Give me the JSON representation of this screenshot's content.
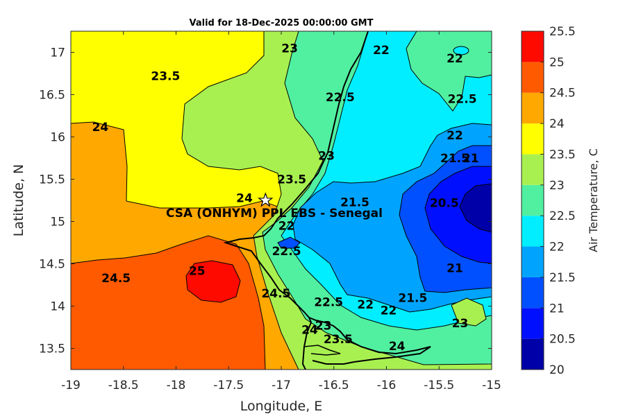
{
  "map": {
    "title": "Valid for 18-Dec-2025 00:00:00 GMT",
    "xlabel": "Longitude, E",
    "ylabel": "Latitude, N",
    "xlim": [
      -19,
      -15
    ],
    "ylim": [
      13.25,
      17.25
    ],
    "x_ticks": [
      "-19",
      "-18.5",
      "-18",
      "-17.5",
      "-17",
      "-16.5",
      "-16",
      "-15.5",
      "-15"
    ],
    "y_ticks": [
      "13.5",
      "14",
      "14.5",
      "15",
      "15.5",
      "16",
      "16.5",
      "17"
    ],
    "site_label": "CSA (ONHYM) PPL EBS  - Senegal",
    "site_lon": -17.15,
    "site_lat": 15.25
  },
  "colorbar": {
    "label": "Air Temperature, C",
    "levels": [
      "20",
      "20.5",
      "21",
      "21.5",
      "22",
      "22.5",
      "23",
      "23.5",
      "24",
      "24.5",
      "25",
      "25.5"
    ],
    "colors": [
      "#0000a8",
      "#0010ff",
      "#0050ff",
      "#00a4ff",
      "#00eeff",
      "#50f0a0",
      "#a8f050",
      "#ffff00",
      "#ffa800",
      "#ff5a00",
      "#ff0a00",
      "#a80000"
    ]
  },
  "chart_data": {
    "type": "contour",
    "title": "Valid for 18-Dec-2025 00:00:00 GMT",
    "xlabel": "Longitude, E",
    "ylabel": "Latitude, N",
    "xlim": [
      -19,
      -15
    ],
    "ylim": [
      13.25,
      17.25
    ],
    "clim": [
      20,
      25.5
    ],
    "contour_labels": [
      {
        "text": "23.5",
        "lon": -18.1,
        "lat": 16.72
      },
      {
        "text": "23",
        "lon": -16.92,
        "lat": 17.05
      },
      {
        "text": "22.5",
        "lon": -16.44,
        "lat": 16.47
      },
      {
        "text": "22",
        "lon": -16.05,
        "lat": 17.03
      },
      {
        "text": "22",
        "lon": -15.35,
        "lat": 16.93
      },
      {
        "text": "22.5",
        "lon": -15.28,
        "lat": 16.45
      },
      {
        "text": "24",
        "lon": -18.72,
        "lat": 16.12
      },
      {
        "text": "23",
        "lon": -16.57,
        "lat": 15.78
      },
      {
        "text": "22",
        "lon": -15.35,
        "lat": 16.02
      },
      {
        "text": "21.5",
        "lon": -15.35,
        "lat": 15.75
      },
      {
        "text": "21",
        "lon": -15.2,
        "lat": 15.75
      },
      {
        "text": "23.5",
        "lon": -16.9,
        "lat": 15.5
      },
      {
        "text": "24",
        "lon": -17.35,
        "lat": 15.28
      },
      {
        "text": "21.5",
        "lon": -16.3,
        "lat": 15.23
      },
      {
        "text": "20.5",
        "lon": -15.45,
        "lat": 15.22
      },
      {
        "text": "22",
        "lon": -16.95,
        "lat": 14.95
      },
      {
        "text": "22.5",
        "lon": -16.95,
        "lat": 14.65
      },
      {
        "text": "24.5",
        "lon": -18.57,
        "lat": 14.33
      },
      {
        "text": "25",
        "lon": -17.8,
        "lat": 14.42
      },
      {
        "text": "24.5",
        "lon": -17.05,
        "lat": 14.15
      },
      {
        "text": "21",
        "lon": -15.35,
        "lat": 14.45
      },
      {
        "text": "22.5",
        "lon": -16.55,
        "lat": 14.05
      },
      {
        "text": "22",
        "lon": -16.2,
        "lat": 14.02
      },
      {
        "text": "21.5",
        "lon": -15.75,
        "lat": 14.1
      },
      {
        "text": "22",
        "lon": -15.98,
        "lat": 13.95
      },
      {
        "text": "23",
        "lon": -16.6,
        "lat": 13.77
      },
      {
        "text": "24",
        "lon": -16.73,
        "lat": 13.72
      },
      {
        "text": "23.5",
        "lon": -16.46,
        "lat": 13.61
      },
      {
        "text": "24",
        "lon": -15.9,
        "lat": 13.53
      },
      {
        "text": "23",
        "lon": -15.3,
        "lat": 13.8
      }
    ]
  }
}
